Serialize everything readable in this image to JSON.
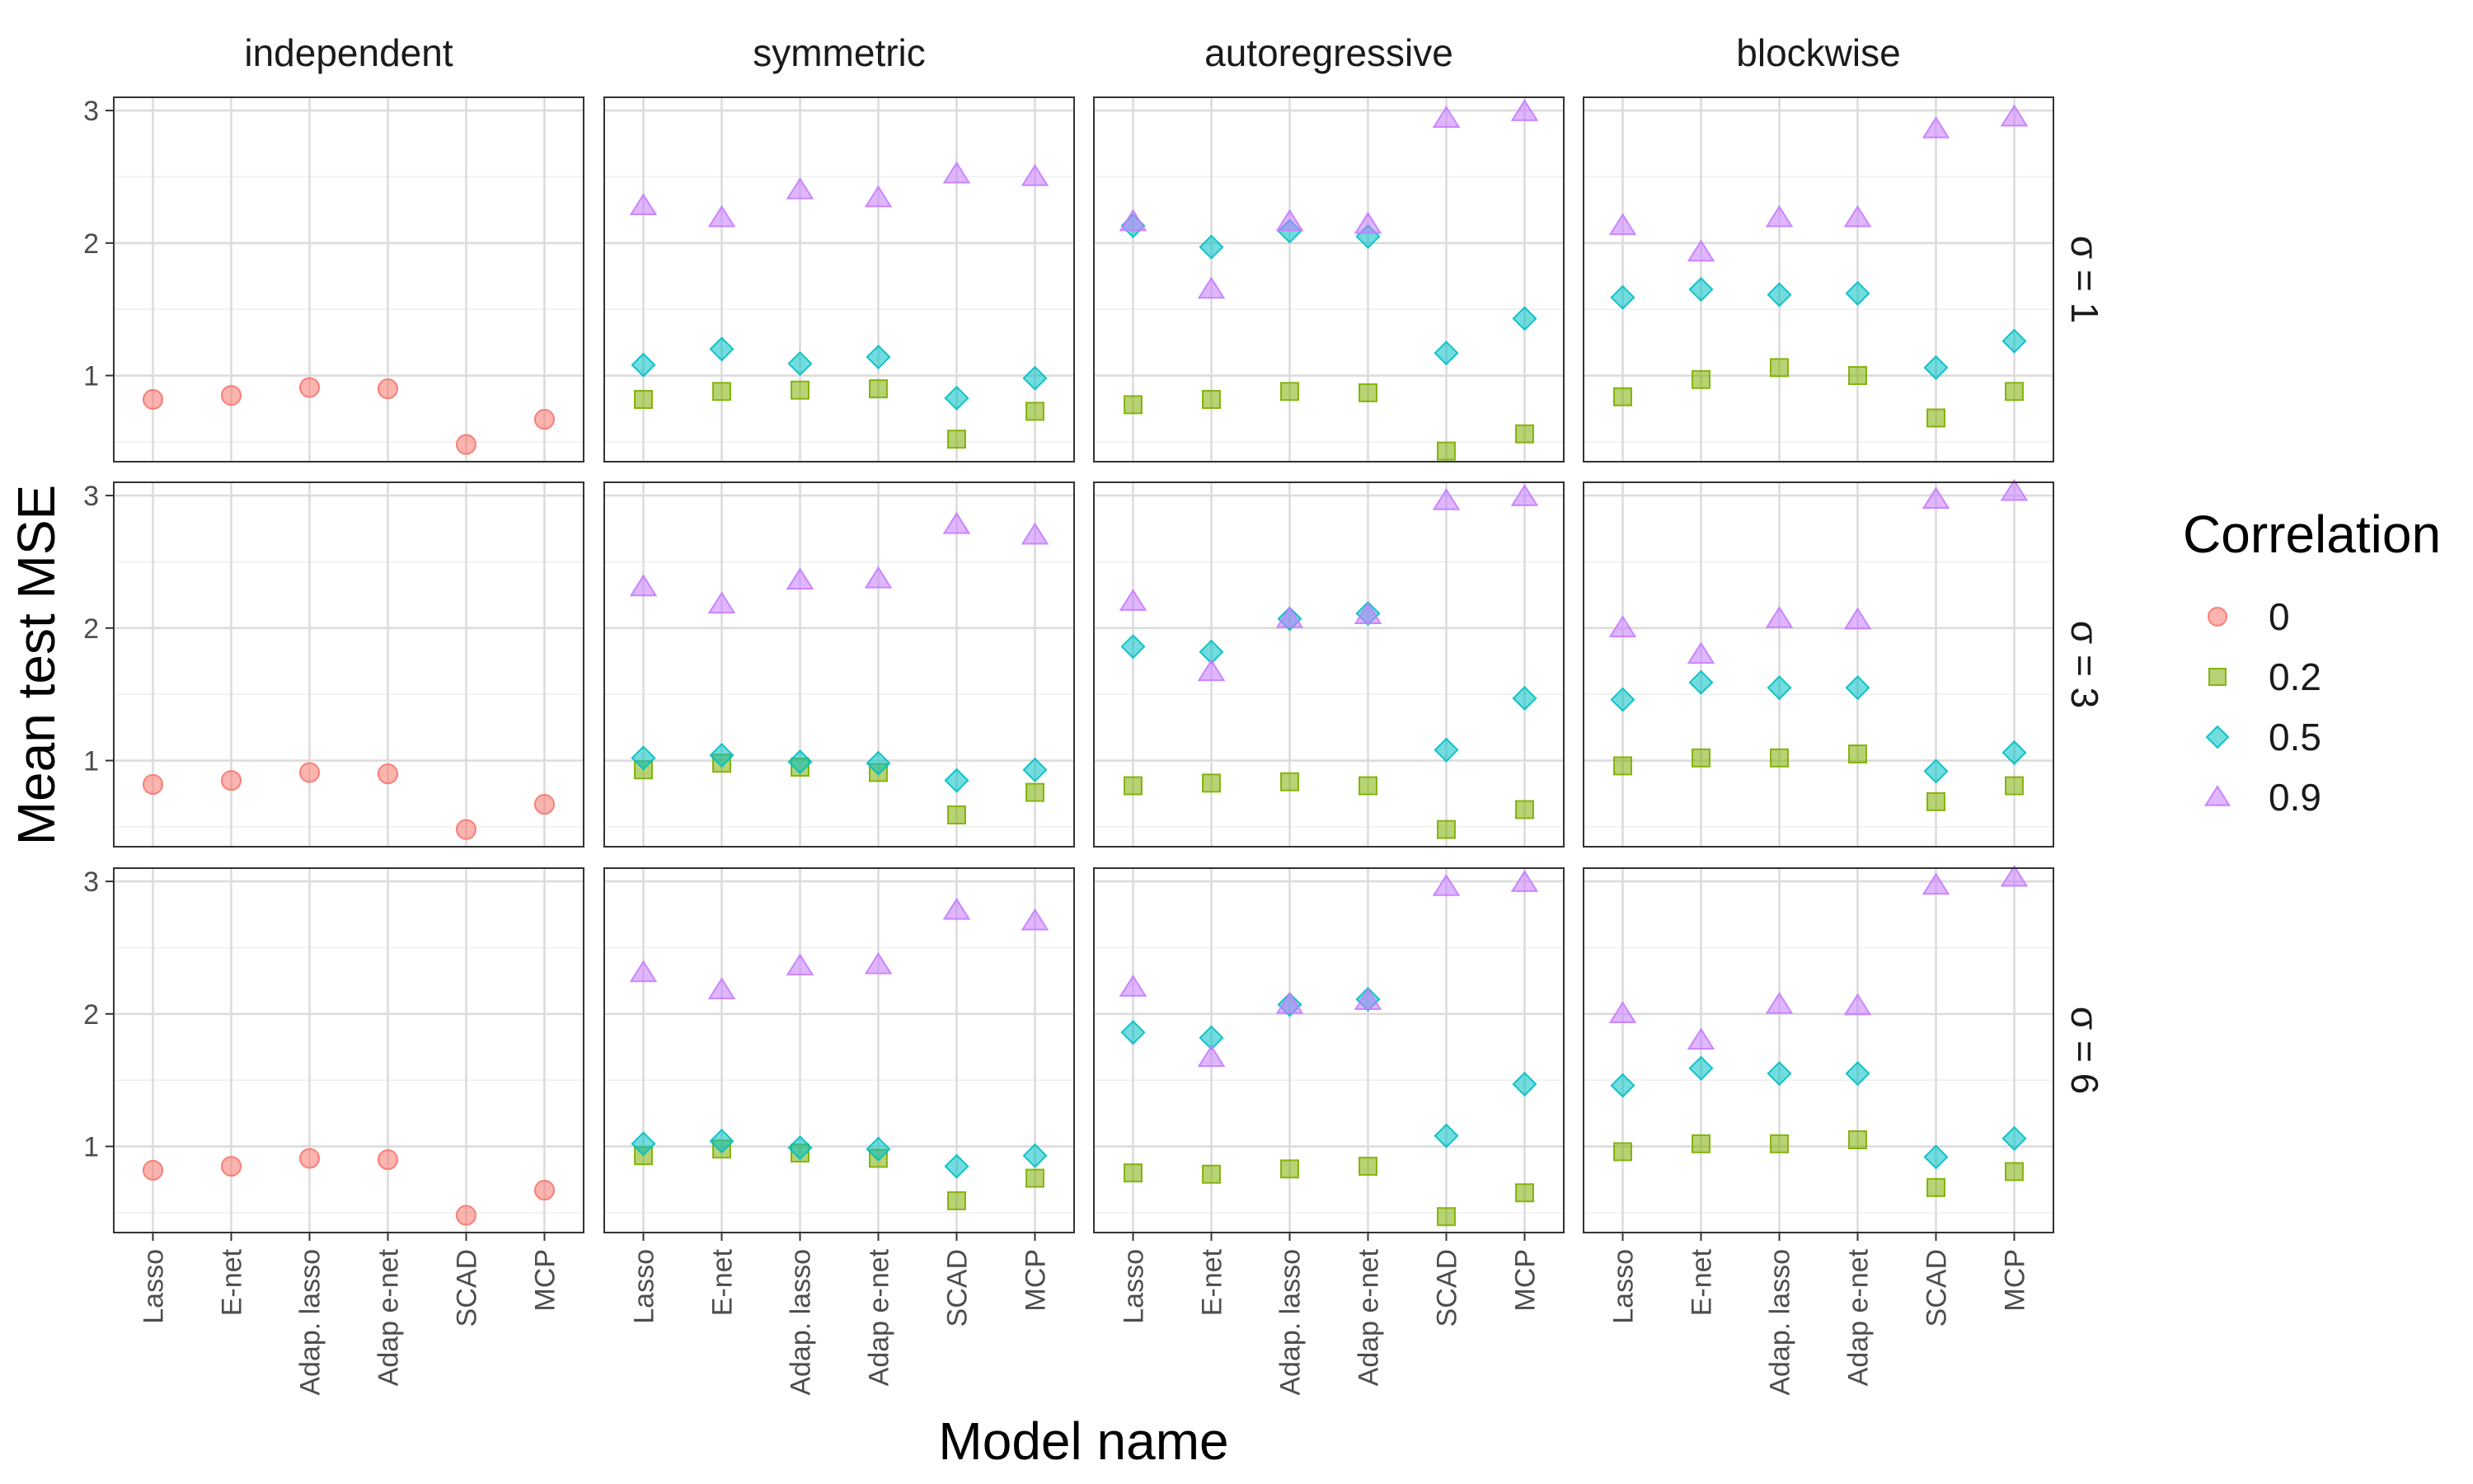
{
  "chart_data": {
    "type": "scatter",
    "xlabel": "Model name",
    "ylabel": "Mean test MSE",
    "categories": [
      "Lasso",
      "E-net",
      "Adap. lasso",
      "Adap e-net",
      "SCAD",
      "MCP"
    ],
    "column_facets": [
      "independent",
      "symmetric",
      "autoregressive",
      "blockwise"
    ],
    "row_facets": [
      "σ = 1",
      "σ = 3",
      "σ = 6"
    ],
    "yticks": [
      "1",
      "2",
      "3"
    ],
    "ylim": [
      0.35,
      3.1
    ],
    "grid": true,
    "legend": {
      "title": "Correlation",
      "position": "right",
      "items": [
        {
          "label": "0",
          "shape": "circle",
          "color": "#F8766D"
        },
        {
          "label": "0.2",
          "shape": "square",
          "color": "#7CAE00"
        },
        {
          "label": "0.5",
          "shape": "diamond",
          "color": "#00BFC4"
        },
        {
          "label": "0.9",
          "shape": "triangle",
          "color": "#C77CFF"
        }
      ]
    },
    "panels": [
      {
        "column": "independent",
        "row": "σ = 1",
        "series": [
          {
            "name": "0",
            "values": [
              0.82,
              0.85,
              0.91,
              0.9,
              0.48,
              0.67
            ]
          }
        ]
      },
      {
        "column": "symmetric",
        "row": "σ = 1",
        "series": [
          {
            "name": "0.2",
            "values": [
              0.82,
              0.88,
              0.89,
              0.9,
              0.52,
              0.73
            ]
          },
          {
            "name": "0.5",
            "values": [
              1.08,
              1.2,
              1.09,
              1.14,
              0.83,
              0.98
            ]
          },
          {
            "name": "0.9",
            "values": [
              2.28,
              2.19,
              2.4,
              2.34,
              2.52,
              2.5
            ]
          }
        ]
      },
      {
        "column": "autoregressive",
        "row": "σ = 1",
        "series": [
          {
            "name": "0.2",
            "values": [
              0.78,
              0.82,
              0.88,
              0.87,
              0.43,
              0.56
            ]
          },
          {
            "name": "0.5",
            "values": [
              2.13,
              1.97,
              2.09,
              2.05,
              1.17,
              1.43
            ]
          },
          {
            "name": "0.9",
            "values": [
              2.16,
              1.65,
              2.16,
              2.14,
              2.94,
              2.99
            ]
          }
        ]
      },
      {
        "column": "blockwise",
        "row": "σ = 1",
        "series": [
          {
            "name": "0.2",
            "values": [
              0.84,
              0.97,
              1.06,
              1.0,
              0.68,
              0.88
            ]
          },
          {
            "name": "0.5",
            "values": [
              1.59,
              1.65,
              1.61,
              1.62,
              1.06,
              1.26
            ]
          },
          {
            "name": "0.9",
            "values": [
              2.13,
              1.93,
              2.19,
              2.19,
              2.86,
              2.95
            ]
          }
        ]
      },
      {
        "column": "independent",
        "row": "σ = 3",
        "series": [
          {
            "name": "0",
            "values": [
              0.82,
              0.85,
              0.91,
              0.9,
              0.48,
              0.67
            ]
          }
        ]
      },
      {
        "column": "symmetric",
        "row": "σ = 3",
        "series": [
          {
            "name": "0.2",
            "values": [
              0.93,
              0.98,
              0.95,
              0.91,
              0.59,
              0.76
            ]
          },
          {
            "name": "0.5",
            "values": [
              1.02,
              1.04,
              0.99,
              0.98,
              0.85,
              0.93
            ]
          },
          {
            "name": "0.9",
            "values": [
              2.31,
              2.18,
              2.36,
              2.37,
              2.78,
              2.7
            ]
          }
        ]
      },
      {
        "column": "autoregressive",
        "row": "σ = 3",
        "series": [
          {
            "name": "0.2",
            "values": [
              0.81,
              0.83,
              0.84,
              0.81,
              0.48,
              0.63
            ]
          },
          {
            "name": "0.5",
            "values": [
              1.86,
              1.82,
              2.07,
              2.11,
              1.08,
              1.47
            ]
          },
          {
            "name": "0.9",
            "values": [
              2.2,
              1.67,
              2.07,
              2.1,
              2.96,
              2.99
            ]
          }
        ]
      },
      {
        "column": "blockwise",
        "row": "σ = 3",
        "series": [
          {
            "name": "0.2",
            "values": [
              0.96,
              1.02,
              1.02,
              1.05,
              0.69,
              0.81
            ]
          },
          {
            "name": "0.5",
            "values": [
              1.46,
              1.59,
              1.55,
              1.55,
              0.92,
              1.06
            ]
          },
          {
            "name": "0.9",
            "values": [
              2.0,
              1.8,
              2.07,
              2.06,
              2.97,
              3.03
            ]
          }
        ]
      },
      {
        "column": "independent",
        "row": "σ = 6",
        "series": [
          {
            "name": "0",
            "values": [
              0.82,
              0.85,
              0.91,
              0.9,
              0.48,
              0.67
            ]
          }
        ]
      },
      {
        "column": "symmetric",
        "row": "σ = 6",
        "series": [
          {
            "name": "0.2",
            "values": [
              0.93,
              0.98,
              0.95,
              0.91,
              0.59,
              0.76
            ]
          },
          {
            "name": "0.5",
            "values": [
              1.02,
              1.04,
              0.99,
              0.98,
              0.85,
              0.93
            ]
          },
          {
            "name": "0.9",
            "values": [
              2.31,
              2.18,
              2.36,
              2.37,
              2.78,
              2.7
            ]
          }
        ]
      },
      {
        "column": "autoregressive",
        "row": "σ = 6",
        "series": [
          {
            "name": "0.2",
            "values": [
              0.8,
              0.79,
              0.83,
              0.85,
              0.47,
              0.65
            ]
          },
          {
            "name": "0.5",
            "values": [
              1.86,
              1.82,
              2.07,
              2.11,
              1.08,
              1.47
            ]
          },
          {
            "name": "0.9",
            "values": [
              2.2,
              1.67,
              2.07,
              2.1,
              2.96,
              2.99
            ]
          }
        ]
      },
      {
        "column": "blockwise",
        "row": "σ = 6",
        "series": [
          {
            "name": "0.2",
            "values": [
              0.96,
              1.02,
              1.02,
              1.05,
              0.69,
              0.81
            ]
          },
          {
            "name": "0.5",
            "values": [
              1.46,
              1.59,
              1.55,
              1.55,
              0.92,
              1.06
            ]
          },
          {
            "name": "0.9",
            "values": [
              2.0,
              1.8,
              2.07,
              2.06,
              2.97,
              3.03
            ]
          }
        ]
      }
    ]
  }
}
